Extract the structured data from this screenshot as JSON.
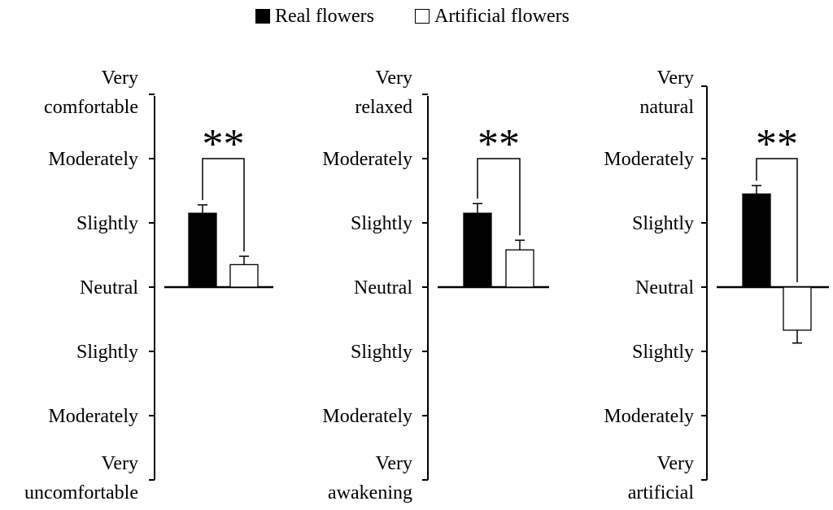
{
  "legend": {
    "real_label": "Real flowers",
    "artificial_label": "Artificial flowers",
    "real_color": "#000000",
    "artificial_color": "#ffffff"
  },
  "chart_data": [
    {
      "type": "bar",
      "categories": [
        "Real flowers",
        "Artificial flowers"
      ],
      "values": [
        1.15,
        0.35
      ],
      "errors": [
        0.13,
        0.13
      ],
      "ylim": [
        -3,
        3
      ],
      "yticks": [
        -3,
        -2,
        -1,
        0,
        1,
        2,
        3
      ],
      "tick_labels": [
        "Very uncomfortable",
        "Moderately",
        "Slightly",
        "Neutral",
        "Slightly",
        "Moderately",
        "Very comfortable"
      ],
      "significance": "**",
      "grid": false
    },
    {
      "type": "bar",
      "categories": [
        "Real flowers",
        "Artificial flowers"
      ],
      "values": [
        1.15,
        0.58
      ],
      "errors": [
        0.15,
        0.15
      ],
      "ylim": [
        -3,
        3
      ],
      "yticks": [
        -3,
        -2,
        -1,
        0,
        1,
        2,
        3
      ],
      "tick_labels": [
        "Very awakening",
        "Moderately",
        "Slightly",
        "Neutral",
        "Slightly",
        "Moderately",
        "Very relaxed"
      ],
      "significance": "**",
      "grid": false
    },
    {
      "type": "bar",
      "categories": [
        "Real flowers",
        "Artificial flowers"
      ],
      "values": [
        1.45,
        -0.67
      ],
      "errors": [
        0.13,
        0.2
      ],
      "ylim": [
        -3,
        3
      ],
      "yticks": [
        -3,
        -2,
        -1,
        0,
        1,
        2,
        3
      ],
      "tick_labels": [
        "Very artificial",
        "Moderately",
        "Slightly",
        "Neutral",
        "Slightly",
        "Moderately",
        "Very natural"
      ],
      "significance": "**",
      "grid": false
    }
  ]
}
